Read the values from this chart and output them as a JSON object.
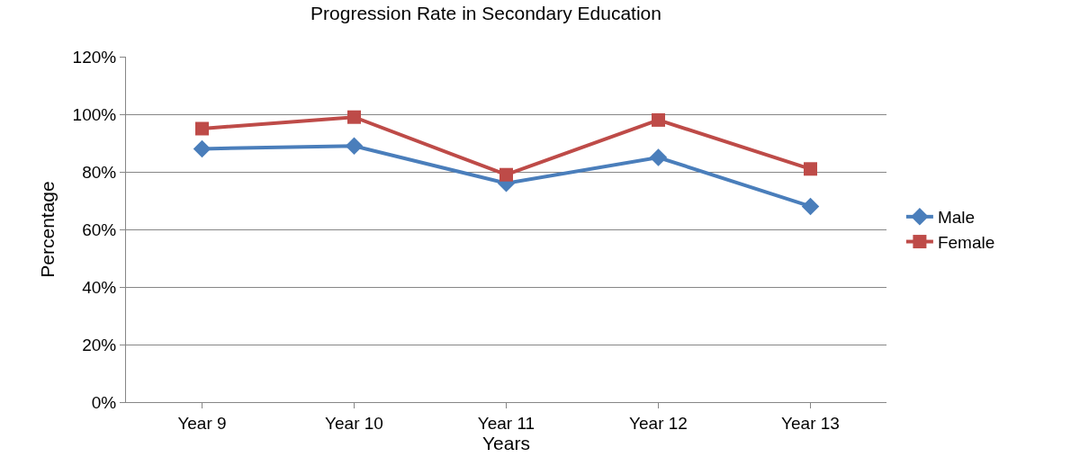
{
  "chart_data": {
    "type": "line",
    "title": "Progression Rate in Secondary Education",
    "xlabel": "Years",
    "ylabel": "Percentage",
    "categories": [
      "Year 9",
      "Year 10",
      "Year 11",
      "Year 12",
      "Year 13"
    ],
    "series": [
      {
        "name": "Male",
        "color": "#4a7ebb",
        "marker": "diamond",
        "values": [
          88,
          89,
          76,
          85,
          68
        ]
      },
      {
        "name": "Female",
        "color": "#be4b48",
        "marker": "square",
        "values": [
          95,
          99,
          79,
          98,
          81
        ]
      }
    ],
    "ylim": [
      0,
      120
    ],
    "yticks": [
      {
        "value": 0,
        "label": "0%"
      },
      {
        "value": 20,
        "label": "20%"
      },
      {
        "value": 40,
        "label": "40%"
      },
      {
        "value": 60,
        "label": "60%"
      },
      {
        "value": 80,
        "label": "80%"
      },
      {
        "value": 100,
        "label": "100%"
      },
      {
        "value": 120,
        "label": "120%"
      }
    ],
    "grid": "y",
    "legend": "right",
    "line_style": "solid"
  }
}
